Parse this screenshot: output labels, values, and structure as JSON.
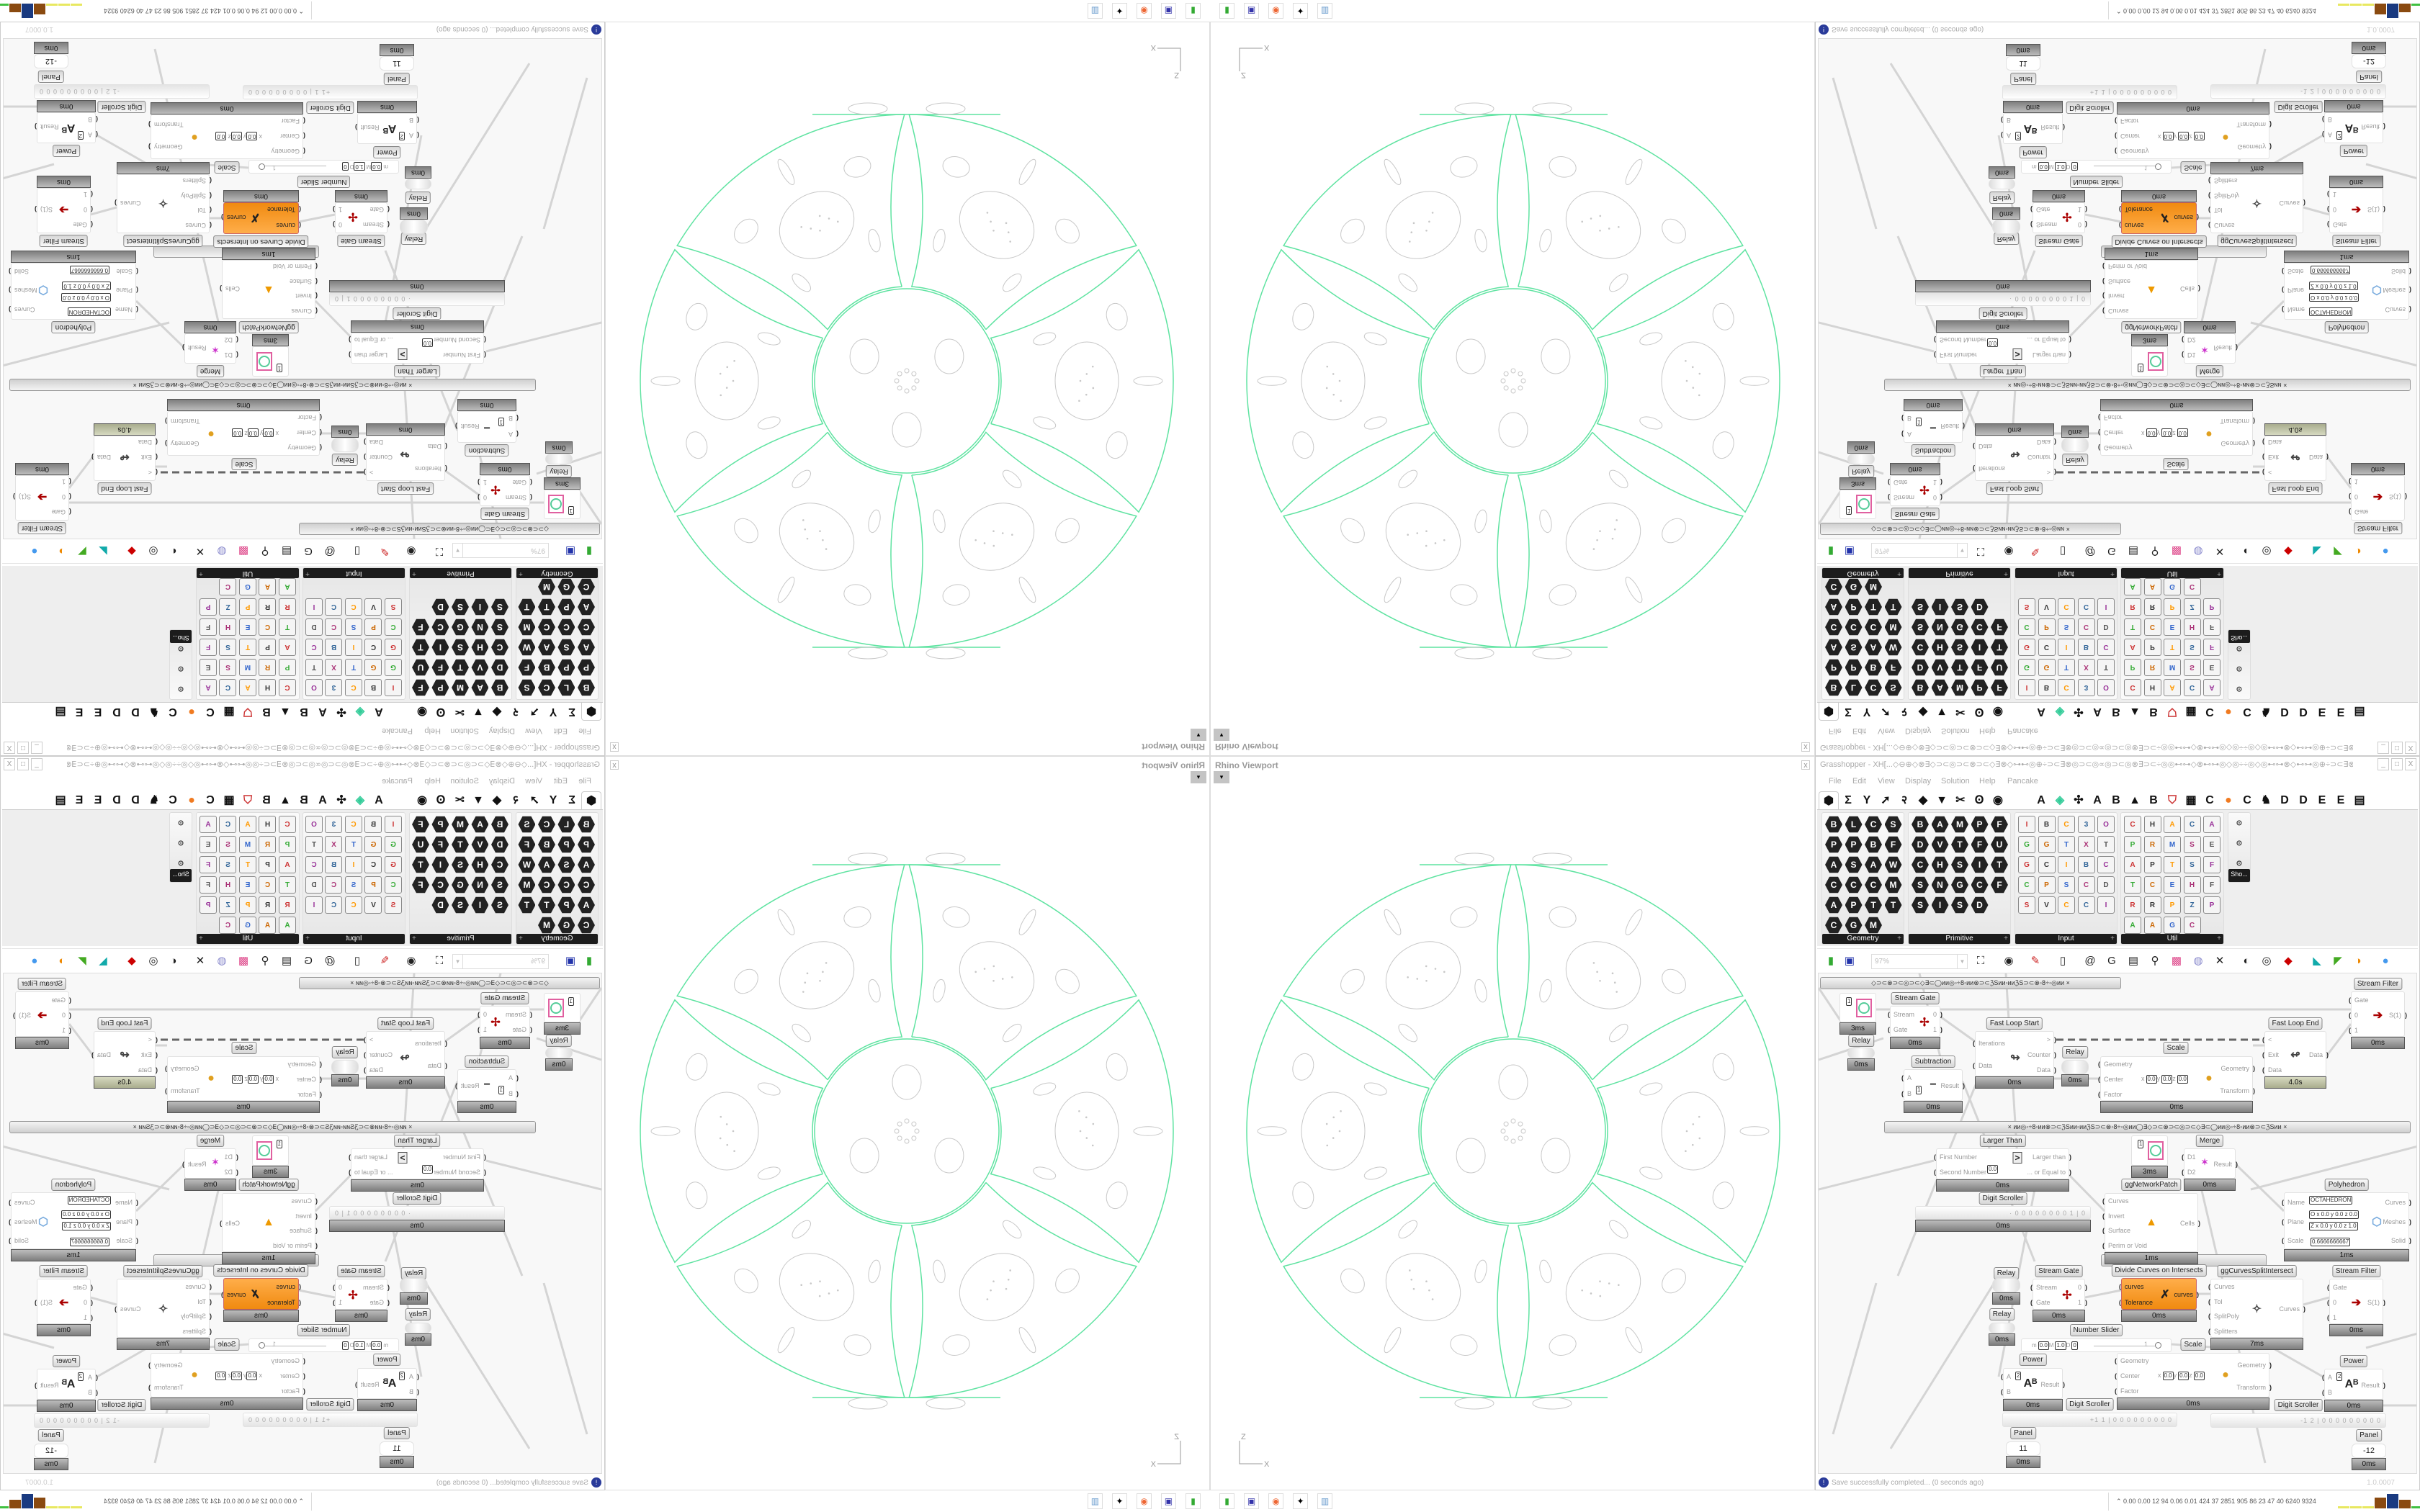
{
  "viewport": {
    "title": "Rhino Viewport",
    "close_label": "x",
    "axis_labels": {
      "vertical": "Z",
      "horizontal": "X"
    },
    "colors": {
      "curves": "#5fe3a1",
      "craters": "#c8c8c8"
    }
  },
  "grasshopper": {
    "title": "Grasshopper - XH[...◇⊖⊕◇⊗∃◇⊃⊂◎⊃⊂⊗⊃⊂◇∃⊗◇⊶⊷◎⊕÷⊃⊂∃⊗◎⊃⊂◎∝◎⊃⊂◎⊗∃⊃⊂÷◎◎⊷⊶◇⊗⊷⊶◎◇◎÷÷◎◇◎⊷⊶⊗◇⊷⊶◎⊕÷⊃⊂∃⊗◎⊃⊂...",
    "window_buttons": [
      "_",
      "□",
      "X"
    ],
    "menu": [
      "File",
      "Edit",
      "View",
      "Display",
      "Solution",
      "Help",
      "Pancake"
    ],
    "tabs": [
      {
        "icon": "params-hexagon-icon",
        "selected": true
      },
      {
        "icon": "sigma-icon"
      },
      {
        "icon": "y-fork-icon"
      },
      {
        "icon": "arrow-icon"
      },
      {
        "icon": "curl-icon"
      },
      {
        "icon": "leaf-icon"
      },
      {
        "icon": "bird-icon"
      },
      {
        "icon": "scissors-icon"
      },
      {
        "icon": "swirl-icon"
      },
      {
        "icon": "eye-icon"
      },
      {
        "text": "A"
      },
      {
        "icon": "gem-icon"
      },
      {
        "icon": "puzzle-icon"
      },
      {
        "text": "A"
      },
      {
        "text": "B"
      },
      {
        "icon": "mountain-icon"
      },
      {
        "text": "B"
      },
      {
        "icon": "shield-icon"
      },
      {
        "icon": "grid-icon"
      },
      {
        "text": "C"
      },
      {
        "icon": "orange-circle-icon"
      },
      {
        "text": "C"
      },
      {
        "icon": "chicken-icon"
      },
      {
        "text": "D"
      },
      {
        "text": "D"
      },
      {
        "text": "E"
      },
      {
        "text": "E"
      },
      {
        "icon": "more-tabs-icon"
      }
    ],
    "panels": [
      {
        "label": "Geometry",
        "style": "hex",
        "cols": 4,
        "icons": [
          "box-vector",
          "line",
          "curve",
          "spiral",
          "point-x",
          "plane",
          "brep",
          "field",
          "arrow",
          "surface-diamond",
          "abc-text",
          "wave",
          "circle",
          "cube",
          "cell",
          "mesh",
          "arc",
          "polygon",
          "twisted-box",
          "transform",
          "circle-ring",
          "geodesic-sphere",
          "magnet"
        ]
      },
      {
        "label": "Primitive",
        "style": "hex",
        "cols": 5,
        "icons": [
          "boolean",
          "atom",
          "matrix",
          "path",
          "file-path",
          "data",
          "vector-path",
          "time",
          "folder",
          "ucs",
          "culture",
          "hex-pattern",
          "script",
          "integer",
          "tree",
          "shape",
          "number",
          "grid",
          "complex",
          "file",
          "string-a",
          "id",
          "sphere-gray",
          "dome"
        ]
      },
      {
        "label": "Input",
        "style": "sq",
        "cols": 5,
        "icons": [
          "import",
          "black-panel",
          "color-gem",
          "3dm-file",
          "object-file",
          "graph-mapper",
          "gradient-arrow",
          "t-bar",
          "xyz-file",
          "toggle",
          "gradient-swatch",
          "color-wheel",
          "img-file",
          "button",
          "checker",
          "curve-graph",
          "pdb-file",
          "scribble",
          "calendar",
          "dial",
          "shp-file",
          "value-list",
          "clock",
          "color-swatch",
          "id-tag"
        ]
      },
      {
        "label": "Util",
        "style": "sq",
        "cols": 5,
        "icons": [
          "cherry",
          "horseshoe",
          "arrow-right",
          "c-sharp",
          "a-script",
          "play",
          "rec",
          "magnifier",
          "spiral-hex",
          "eraser-ball",
          "axes",
          "pen",
          "timer",
          "seven-hex",
          "flask",
          "tree",
          "cluster",
          "egg",
          "hex-pen",
          "fx",
          "ring",
          "refresh",
          "premiere",
          "zero-one",
          "palette",
          "abc",
          "arrow-fat",
          "gauge",
          "cross-hex"
        ]
      }
    ],
    "sho_panel": {
      "label": "Sho...",
      "icons": [
        "goggles",
        "goggles-outline",
        "presentation"
      ]
    },
    "toolbar": {
      "zoom_value": "97%",
      "icons_left": [
        "new-file-icon",
        "save-icon"
      ],
      "icons_right": [
        "zoom-extents-icon",
        "eye-icon",
        "sketch-icon",
        "bifocals-icon",
        "at-icon",
        "gha-icon",
        "canvas-icon",
        "search-icon",
        "package-icon",
        "bulb-icon",
        "wires-icon",
        "preview-sphere-icon",
        "preview-wire-icon",
        "preview-shaded-icon",
        "ribbon-cyan-icon",
        "ribbon-green-icon",
        "sphere-orange-icon",
        "sphere-blue-icon"
      ]
    },
    "group_labels": [
      "◇⊃⊂⊗⊃⊂◎⊃⊂◇∃⊂◯ᴎᴎ◎◦÷8◦ᴎᴎ⊗⊃⊂ℨSᴎᴎ◦ᴎᴎℨS⊃⊂⊗◦8÷◦◎ᴎᴎ    ×",
      "×    ᴎᴎ◎◦÷8◦ᴎᴎ⊗⊃⊂ℨSᴎᴎ◦ᴎᴎℨS⊃⊂⊗◦8÷◦◎ᴎᴎ◯∃◇⊃⊂⊗⊃⊂◎⊃⊂◇∃⊂◯ᴎᴎ◎◦÷8◦ᴎᴎ⊗⊃⊂ℨSᴎᴎ    ×",
      ""
    ],
    "nodes": [
      {
        "kind": "param",
        "value": "1",
        "footer": "3ms"
      },
      {
        "kind": "relay",
        "label": "Relay",
        "footer": "0ms"
      },
      {
        "kind": "component",
        "label": "Stream Gate",
        "icon": "stream-gate-icon",
        "inputs": [
          "Stream",
          "Gate"
        ],
        "outputs": [
          "0",
          "1"
        ],
        "footer": "0ms"
      },
      {
        "kind": "component",
        "label": "Subtraction",
        "icon": "minus-icon",
        "inputs": [
          "A",
          "B"
        ],
        "fields": [
          "1"
        ],
        "outputs": [
          "Result"
        ],
        "footer": "0ms"
      },
      {
        "kind": "component",
        "label": "Fast Loop Start",
        "icon": "loop-start-icon",
        "inputs": [
          "Iterations",
          "Data"
        ],
        "outputs": [
          ">",
          "Counter",
          "Data"
        ],
        "footer": "0ms"
      },
      {
        "kind": "relay",
        "label": "Relay",
        "footer": "0ms"
      },
      {
        "kind": "component",
        "label": "Scale",
        "icon": "scale-icon",
        "inputs": [
          "Geometry",
          "Center",
          "Factor"
        ],
        "fields": [
          "x",
          "0.0",
          "y",
          "0.0",
          "z",
          "0.0"
        ],
        "outputs": [
          "Geometry",
          "Transform"
        ],
        "footer": "0ms"
      },
      {
        "kind": "component",
        "label": "Fast Loop End",
        "icon": "loop-end-icon",
        "inputs": [
          "<",
          "Exit",
          "Data"
        ],
        "outputs": [
          "Data"
        ],
        "footer": "4.0s",
        "footer_green": true
      },
      {
        "kind": "component",
        "label": "Stream Filter",
        "icon": "stream-filter-icon",
        "inputs": [
          "Gate",
          "0",
          "1"
        ],
        "outputs": [
          "S(1)"
        ],
        "footer": "0ms"
      },
      {
        "kind": "component",
        "label": "Larger Than",
        "icon": "greater-than-icon",
        "inputs": [
          "First Number",
          "Second Number"
        ],
        "fields": [
          "0.0"
        ],
        "outputs": [
          "Larger than",
          "... or Equal to"
        ],
        "footer": "0ms"
      },
      {
        "kind": "scroller",
        "label": "Digit Scroller",
        "value": "· 0 0 0 0 0 0 0 0 1 | 0",
        "footer": "0ms"
      },
      {
        "kind": "param",
        "value": "1",
        "footer": "3ms"
      },
      {
        "kind": "component",
        "label": "Merge",
        "icon": "merge-icon",
        "inputs": [
          "D1",
          "D2"
        ],
        "outputs": [
          "Result"
        ],
        "footer": "0ms"
      },
      {
        "kind": "component",
        "label": "ggNetworkPatch",
        "icon": "network-patch-icon",
        "inputs": [
          "Curves",
          "Invert",
          "Surface",
          "Perim or Void"
        ],
        "outputs": [
          "Cells"
        ],
        "footer": "1ms"
      },
      {
        "kind": "component",
        "label": "Polyhedron",
        "icon": "polyhedron-icon",
        "inputs": [
          "Name",
          "Plane",
          "Scale"
        ],
        "fields": [
          "OCTAHEDRON",
          "O x 0.0 y 0.0 z 0.0",
          "Z x 0.0 y 0.0 z 1.0",
          "0.6666666667"
        ],
        "outputs": [
          "Curves",
          "Meshes",
          "Solid"
        ],
        "footer": "1ms"
      },
      {
        "kind": "relay",
        "label": "Relay",
        "footer": "0ms"
      },
      {
        "kind": "relay",
        "label": "Relay",
        "footer": "0ms"
      },
      {
        "kind": "component",
        "label": "Stream Gate",
        "icon": "stream-gate-icon",
        "inputs": [
          "Stream",
          "Gate"
        ],
        "outputs": [
          "0",
          "1"
        ],
        "footer": "0ms"
      },
      {
        "kind": "component",
        "label": "Divide Curves on Intersects",
        "icon": "divide-curves-icon",
        "orange": true,
        "inputs": [
          "curves",
          "Tolerance"
        ],
        "outputs": [
          "curves"
        ],
        "footer": "0ms"
      },
      {
        "kind": "component",
        "label": "ggCurvesSplitIntersect",
        "icon": "split-intersect-icon",
        "inputs": [
          "Curves",
          "Tol",
          "SplitPoly",
          "Splitters"
        ],
        "outputs": [
          "Curves"
        ],
        "footer": "7ms"
      },
      {
        "kind": "component",
        "label": "Stream Filter",
        "icon": "stream-filter-icon",
        "inputs": [
          "Gate",
          "0",
          "1"
        ],
        "outputs": [
          "S(1)"
        ],
        "footer": "0ms"
      },
      {
        "kind": "slider",
        "label": "Number Slider",
        "fields": [
          "m",
          "0.0",
          "M",
          "1.0",
          "D",
          "0"
        ],
        "value": "1",
        "slider_fraction": 1.0
      },
      {
        "kind": "component",
        "label": "Scale",
        "icon": "scale-icon",
        "inputs": [
          "Geometry",
          "Center",
          "Factor"
        ],
        "fields": [
          "x",
          "0.0",
          "y",
          "0.0",
          "z",
          "0.0"
        ],
        "outputs": [
          "Geometry",
          "Transform"
        ],
        "footer": "0ms"
      },
      {
        "kind": "component",
        "label": "Power",
        "icon": "power-icon",
        "inputs": [
          "A",
          "B"
        ],
        "fields": [
          "2"
        ],
        "outputs": [
          "Result"
        ],
        "footer": "0ms"
      },
      {
        "kind": "component",
        "label": "Power",
        "icon": "power-icon",
        "inputs": [
          "A",
          "B"
        ],
        "fields": [
          "2"
        ],
        "outputs": [
          "Result"
        ],
        "footer": "0ms"
      },
      {
        "kind": "scroller",
        "label": "Digit Scroller",
        "value": "+1 1 | 0 0 0 0 0 0 0 0 0"
      },
      {
        "kind": "scroller",
        "label": "Digit Scroller",
        "value": "-1 2 | 0 0 0 0 0 0 0 0 0"
      },
      {
        "kind": "panel",
        "label": "Panel",
        "value": "11",
        "footer": "0ms"
      },
      {
        "kind": "panel",
        "label": "Panel",
        "value": "-12",
        "footer": "0ms"
      }
    ],
    "status": {
      "message": "Save successfully completed... (0 seconds ago)",
      "version": "1.0.0007"
    }
  },
  "taskbar": {
    "apps": [
      "terminal-icon",
      "floppy-64-icon",
      "firefox-icon",
      "inkscape-icon",
      "calculator-icon"
    ],
    "perf_readout": "0.00 0.00  12   94  0.06 0.01  424   37  2851 905   86   23   47   40  6240 9324",
    "perf_bar_colors": [
      "#e8e860",
      "#e8e860",
      "#e8e860",
      "#8a4a10",
      "#1a3a80",
      "#8a4a10",
      "#40c040",
      "#800000"
    ]
  }
}
